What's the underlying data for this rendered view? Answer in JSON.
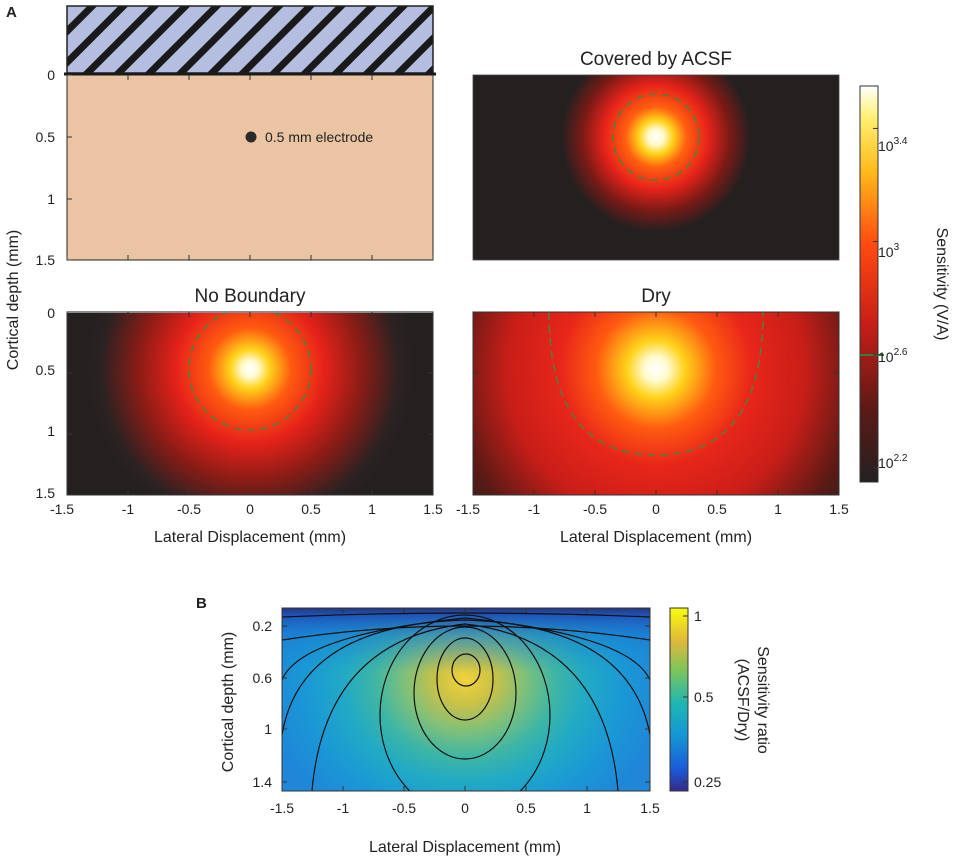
{
  "panel_letters": {
    "a": "A",
    "b": "B"
  },
  "colors": {
    "tissue": "#ebc5a3",
    "saline_fill": "#b4bee1",
    "hatch": "#1a1a1a",
    "dashed_contour": "#5a7a3a",
    "colorbar_marker": "#3a7a3a",
    "parula_low": "#352a87",
    "parula_mid": "#1fb7b2",
    "parula_high": "#f9fb0e"
  },
  "chart_data": [
    {
      "id": "schematic",
      "type": "schematic",
      "title": "",
      "ylabel": "Cortical depth (mm)",
      "ylim": [
        1.5,
        0
      ],
      "yticks": [
        "0",
        "0.5",
        "1",
        "1.5"
      ],
      "electrode": {
        "x": 0,
        "y": 0.5,
        "label": "0.5 mm electrode"
      }
    },
    {
      "id": "covered",
      "type": "heatmap",
      "title": "Covered by ACSF",
      "xlim": [
        -1.5,
        1.5
      ],
      "ylim": [
        1.5,
        0
      ],
      "source": {
        "x": 0,
        "y": 0.5
      },
      "dashed_contour_radius_mm": 0.35
    },
    {
      "id": "no-boundary",
      "type": "heatmap",
      "title": "No Boundary",
      "xlabel": "Lateral Displacement (mm)",
      "ylabel": "Cortical depth (mm)",
      "xlim": [
        -1.5,
        1.5
      ],
      "ylim": [
        1.5,
        0
      ],
      "xticks": [
        "-1.5",
        "-1",
        "-0.5",
        "0",
        "0.5",
        "1",
        "1.5"
      ],
      "yticks": [
        "0",
        "0.5",
        "1",
        "1.5"
      ],
      "source": {
        "x": 0,
        "y": 0.5
      },
      "dashed_contour_radius_mm": 0.5
    },
    {
      "id": "dry",
      "type": "heatmap",
      "title": "Dry",
      "xlabel": "Lateral Displacement (mm)",
      "xlim": [
        -1.5,
        1.5
      ],
      "ylim": [
        1.5,
        0
      ],
      "xticks": [
        "-1.5",
        "-1",
        "-0.5",
        "0",
        "0.5",
        "1",
        "1.5"
      ],
      "source": {
        "x": 0,
        "y": 0.5
      },
      "dashed_contour_radius_mm": 0.85
    },
    {
      "id": "colorbar-a",
      "type": "colorbar",
      "label": "Sensitivity (V/A)",
      "scale": "log",
      "range": [
        2.15,
        3.55
      ],
      "ticks": [
        {
          "exp": 2.2,
          "base": "10",
          "sup": "2.2"
        },
        {
          "exp": 2.6,
          "base": "10",
          "sup": "2.6"
        },
        {
          "exp": 3.0,
          "base": "10",
          "sup": "3"
        },
        {
          "exp": 3.4,
          "base": "10",
          "sup": "3.4"
        }
      ],
      "marker_exp": 2.6
    },
    {
      "id": "ratio",
      "type": "heatmap",
      "title": "",
      "xlabel": "Lateral Displacement (mm)",
      "ylabel": "Cortical depth (mm)",
      "xlim": [
        -1.5,
        1.5
      ],
      "ylim": [
        1.6,
        0.05
      ],
      "xticks": [
        "-1.5",
        "-1",
        "-0.5",
        "0",
        "0.5",
        "1",
        "1.5"
      ],
      "yticks": [
        "0.2",
        "0.6",
        "1",
        "1.4"
      ],
      "contour_levels": [
        0.3,
        0.35,
        0.4,
        0.5,
        0.6,
        0.7,
        0.8
      ],
      "peak": {
        "x": 0,
        "y": 0.7,
        "value": 1
      }
    },
    {
      "id": "colorbar-b",
      "type": "colorbar",
      "label_line1": "Sensitivity ratio",
      "label_line2": "(ACSF/Dry)",
      "range": [
        0.2,
        1
      ],
      "ticks": [
        "0.25",
        "0.5",
        "1"
      ]
    }
  ]
}
